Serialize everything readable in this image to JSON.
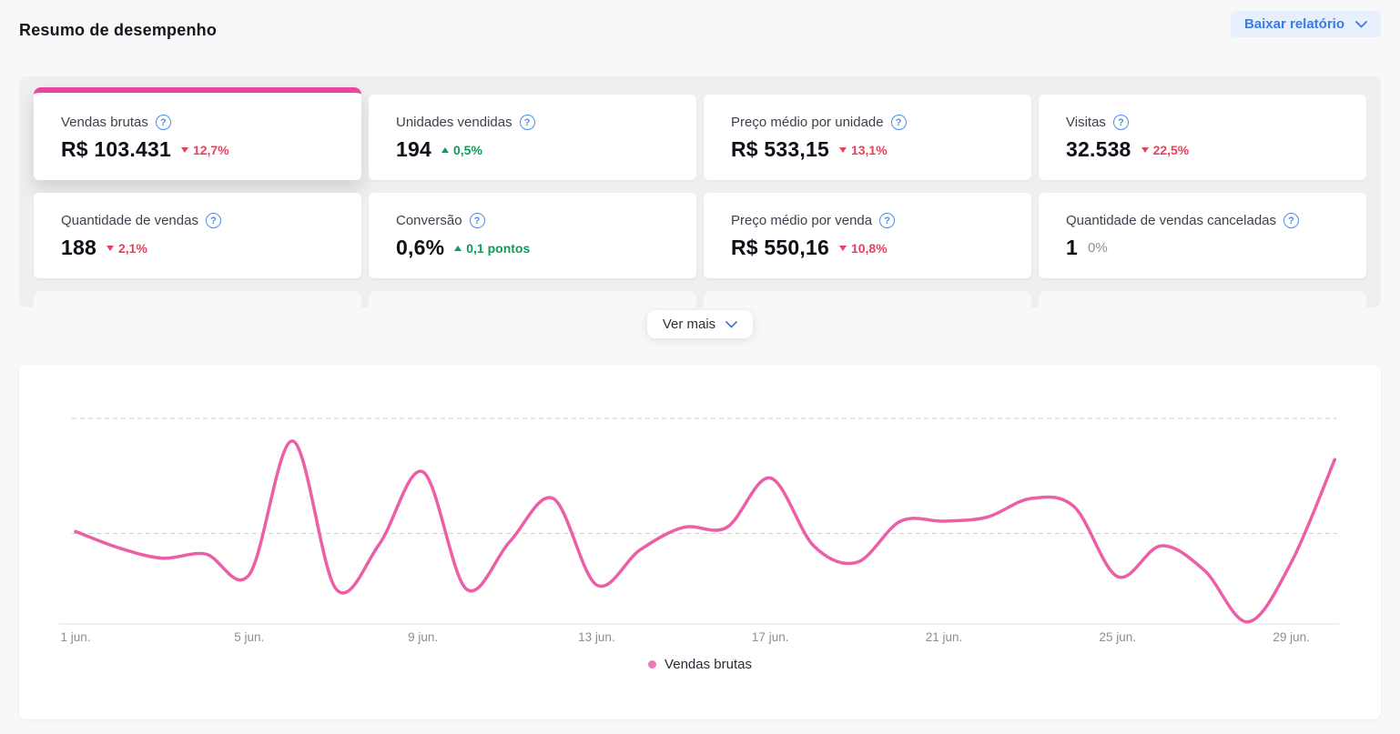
{
  "header": {
    "title": "Resumo de desempenho",
    "download_label": "Baixar relatório"
  },
  "metrics": {
    "ver_mais_label": "Ver mais",
    "cards": [
      {
        "label": "Vendas brutas",
        "value": "R$ 103.431",
        "delta": "12,7%",
        "trend": "down",
        "selected": true
      },
      {
        "label": "Unidades vendidas",
        "value": "194",
        "delta": "0,5%",
        "trend": "up",
        "selected": false
      },
      {
        "label": "Preço médio por unidade",
        "value": "R$ 533,15",
        "delta": "13,1%",
        "trend": "down",
        "selected": false
      },
      {
        "label": "Visitas",
        "value": "32.538",
        "delta": "22,5%",
        "trend": "down",
        "selected": false
      },
      {
        "label": "Quantidade de vendas",
        "value": "188",
        "delta": "2,1%",
        "trend": "down",
        "selected": false
      },
      {
        "label": "Conversão",
        "value": "0,6%",
        "delta": "0,1 pontos",
        "trend": "up",
        "selected": false
      },
      {
        "label": "Preço médio por venda",
        "value": "R$ 550,16",
        "delta": "10,8%",
        "trend": "down",
        "selected": false
      },
      {
        "label": "Quantidade de vendas canceladas",
        "value": "1",
        "delta": "0%",
        "trend": "neutral",
        "selected": false
      }
    ]
  },
  "icons": {
    "help_glyph": "?"
  },
  "chart_data": {
    "type": "line",
    "title": "",
    "xlabel": "",
    "ylabel": "",
    "x_days": [
      1,
      2,
      3,
      4,
      5,
      6,
      7,
      8,
      9,
      10,
      11,
      12,
      13,
      14,
      15,
      16,
      17,
      18,
      19,
      20,
      21,
      22,
      23,
      24,
      25,
      26,
      27,
      28,
      29,
      30
    ],
    "series": [
      {
        "name": "Vendas brutas",
        "color": "#ec5fa7",
        "values": [
          45,
          37,
          32,
          34,
          24,
          89,
          17,
          39,
          74,
          17,
          40,
          61,
          19,
          36,
          47,
          47,
          71,
          38,
          30,
          50,
          50,
          52,
          61,
          57,
          23,
          38,
          26,
          1,
          30,
          80
        ]
      }
    ],
    "x_tick_labels": [
      "1 jun.",
      "5 jun.",
      "9 jun.",
      "13 jun.",
      "17 jun.",
      "21 jun.",
      "25 jun.",
      "29 jun."
    ],
    "x_tick_days": [
      1,
      5,
      9,
      13,
      17,
      21,
      25,
      29
    ],
    "ylim": [
      0,
      100
    ],
    "y_axis_labels_visible": false,
    "value_scale": "relative 0-100 (no y-axis labels shown; 0 = baseline, 100 = top dashed gridline)",
    "gridline_values": [
      44,
      100
    ],
    "grid_style": "dashed",
    "legend_position": "bottom-center",
    "smooth": true
  },
  "colors": {
    "pink": "#e8479b",
    "line_pink": "#ec5fa7",
    "blue": "#3b7be0",
    "red": "#e8415c",
    "green": "#0b9d59",
    "panel_gray": "#efeff1",
    "page_bg": "#f8f8f9"
  }
}
